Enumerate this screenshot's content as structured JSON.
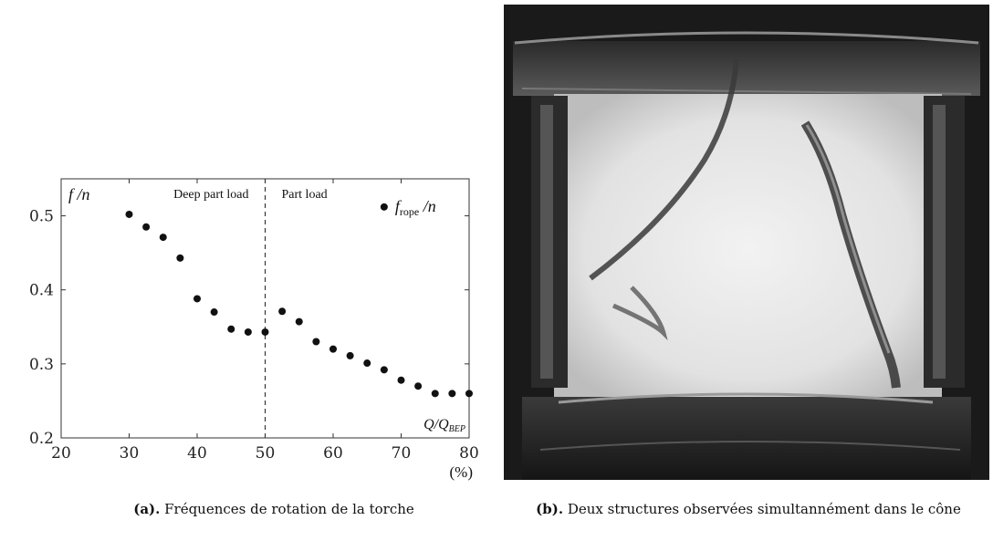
{
  "chart_data": {
    "type": "scatter",
    "xlim": [
      20,
      80
    ],
    "ylim": [
      0.2,
      0.55
    ],
    "x_ticks": [
      "20",
      "30",
      "40",
      "50",
      "60",
      "70",
      "80"
    ],
    "y_ticks": [
      "0.2",
      "0.3",
      "0.4",
      "0.5"
    ],
    "x_unit": "(%)",
    "ylabel_main": "f",
    "ylabel_rest": " /n",
    "xlabel_main": "Q/Q",
    "xlabel_sub": "BEP",
    "region_left": "Deep part load",
    "region_right": "Part load",
    "divider_x": 50,
    "grid": false,
    "legend_position": "top-right",
    "series": [
      {
        "name": "f_rope /n",
        "legend_main": "f",
        "legend_sub": "rope",
        "legend_rest": " /n",
        "color": "#111111",
        "points": [
          [
            30,
            0.502
          ],
          [
            32.5,
            0.485
          ],
          [
            35,
            0.471
          ],
          [
            37.5,
            0.443
          ],
          [
            40,
            0.388
          ],
          [
            42.5,
            0.37
          ],
          [
            45,
            0.347
          ],
          [
            47.5,
            0.343
          ],
          [
            50,
            0.343
          ],
          [
            52.5,
            0.371
          ],
          [
            55,
            0.357
          ],
          [
            57.5,
            0.33
          ],
          [
            60,
            0.32
          ],
          [
            62.5,
            0.311
          ],
          [
            65,
            0.301
          ],
          [
            67.5,
            0.292
          ],
          [
            70,
            0.278
          ],
          [
            72.5,
            0.27
          ],
          [
            75,
            0.26
          ],
          [
            77.5,
            0.26
          ],
          [
            80,
            0.26
          ]
        ]
      }
    ]
  },
  "captions": {
    "a_tag": "(a).",
    "a_text": " Fréquences de rotation de la torche",
    "b_tag": "(b).",
    "b_text": " Deux structures observées simultannément dans le cône"
  }
}
